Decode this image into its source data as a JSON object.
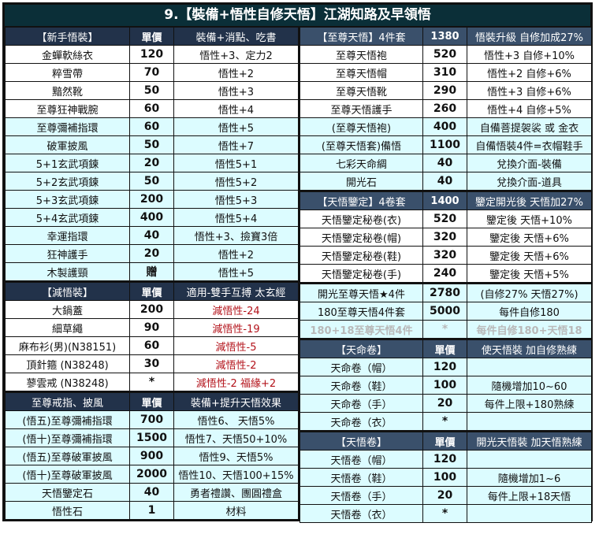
{
  "title": "9.【裝備+悟性自修天悟】江湖知路及早領悟",
  "colors": {
    "title_bg": "#0b2f38",
    "header_left": "#22324a",
    "header_right": "#3a506b",
    "row_cyan": "#dcfcff",
    "row_white": "#ffffff",
    "negative_text": "#b3121a"
  },
  "left_sections": [
    {
      "header": [
        "【新手悟裝】",
        "單價",
        "裝備+消點、吃書"
      ],
      "rows": [
        {
          "cells": [
            "金蟬軟絲衣",
            "120",
            "悟性+3、定力2"
          ],
          "style": "w"
        },
        {
          "cells": [
            "粹雪帶",
            "70",
            "悟性+2"
          ],
          "style": "w"
        },
        {
          "cells": [
            "黯然靴",
            "50",
            "悟性+3"
          ],
          "style": "w"
        },
        {
          "cells": [
            "至尊狂神戰腕",
            "60",
            "悟性+4"
          ],
          "style": "w"
        },
        {
          "cells": [
            "至尊彌補指環",
            "60",
            "悟性+5"
          ],
          "style": "c"
        },
        {
          "cells": [
            "破軍披風",
            "50",
            "悟性+7"
          ],
          "style": "c"
        },
        {
          "cells": [
            "5+1玄武項鍊",
            "20",
            "悟性5+1"
          ],
          "style": "c"
        },
        {
          "cells": [
            "5+2玄武項鍊",
            "50",
            "悟性5+2"
          ],
          "style": "c"
        },
        {
          "cells": [
            "5+3玄武項鍊",
            "200",
            "悟性5+3"
          ],
          "style": "c"
        },
        {
          "cells": [
            "5+4玄武項鍊",
            "400",
            "悟性5+4"
          ],
          "style": "c"
        },
        {
          "cells": [
            "幸運指環",
            "40",
            "悟性+3、撿寶3倍"
          ],
          "style": "c"
        },
        {
          "cells": [
            "狂神護手",
            "20",
            "悟性+2"
          ],
          "style": "c"
        },
        {
          "cells": [
            "木製護頸",
            "贈",
            "悟性+5"
          ],
          "style": "c"
        }
      ]
    },
    {
      "header": [
        "【減悟裝】",
        "單價",
        "適用-雙手互搏 太玄經"
      ],
      "rows": [
        {
          "cells": [
            "大鍋蓋",
            "200",
            "減悟性-24"
          ],
          "style": "w",
          "red": true
        },
        {
          "cells": [
            "細草繩",
            "90",
            "減悟性-19"
          ],
          "style": "w",
          "red": true
        },
        {
          "cells": [
            "麻布衫(男)(N38151)",
            "60",
            "減悟性-5"
          ],
          "style": "w",
          "red": true
        },
        {
          "cells": [
            "頂針箍 (N38248)",
            "30",
            "減悟性-2"
          ],
          "style": "w",
          "red": true
        },
        {
          "cells": [
            "蓼雲戒 (N38248)",
            "*",
            "減悟性-2 福緣+2"
          ],
          "style": "w",
          "red": true
        }
      ]
    },
    {
      "header": [
        "至尊戒指、披風",
        "單價",
        "裝備+提升天悟效果"
      ],
      "rows": [
        {
          "cells": [
            "(悟五)至尊彌補指環",
            "700",
            "悟性6、 天悟5%"
          ],
          "style": "c"
        },
        {
          "cells": [
            "(悟十)至尊彌補指環",
            "1500",
            "悟性7、天悟50+10%"
          ],
          "style": "c"
        },
        {
          "cells": [
            "(悟五)至尊破軍披風",
            "900",
            "悟性9、天悟5%"
          ],
          "style": "c"
        },
        {
          "cells": [
            "(悟十)至尊破軍披風",
            "2000",
            "悟性10、天悟100+15%"
          ],
          "style": "c"
        },
        {
          "cells": [
            "天悟鑒定石",
            "40",
            "勇者禮讚、團圓禮盒"
          ],
          "style": "c"
        },
        {
          "cells": [
            "悟性石",
            "1",
            "材料"
          ],
          "style": "c"
        }
      ]
    }
  ],
  "right_sections": [
    {
      "header": [
        "【至尊天悟】4件套",
        "1380",
        "悟裝升級 自修加成27%"
      ],
      "rows": [
        {
          "cells": [
            "至尊天悟袍",
            "520",
            "悟性+3 自修+10%"
          ],
          "style": "w"
        },
        {
          "cells": [
            "至尊天悟帽",
            "310",
            "悟性+2 自修+6%"
          ],
          "style": "w"
        },
        {
          "cells": [
            "至尊天悟靴",
            "290",
            "悟性+3 自修+6%"
          ],
          "style": "w"
        },
        {
          "cells": [
            "至尊天悟護手",
            "260",
            "悟性+4 自修+5%"
          ],
          "style": "w"
        },
        {
          "cells": [
            "(至尊天悟袍)",
            "400",
            "自備菩提袈裟 或 金衣"
          ],
          "style": "c"
        },
        {
          "cells": [
            "(至尊天悟套)備悟",
            "1100",
            "自備悟裝4件=衣帽鞋手"
          ],
          "style": "c"
        },
        {
          "cells": [
            "七彩天命綢",
            "40",
            "兌換介面-裝備"
          ],
          "style": "c"
        },
        {
          "cells": [
            "開光石",
            "40",
            "兌換介面-道具"
          ],
          "style": "c"
        }
      ]
    },
    {
      "header": [
        "【天悟鑒定】4卷套",
        "1400",
        "鑒定開光後 天悟加27%"
      ],
      "rows": [
        {
          "cells": [
            "天悟鑒定秘卷(衣)",
            "520",
            "鑒定後 天悟+10%"
          ],
          "style": "w"
        },
        {
          "cells": [
            "天悟鑒定秘卷(帽)",
            "320",
            "鑒定後 天悟+6%"
          ],
          "style": "w"
        },
        {
          "cells": [
            "天悟鑒定秘卷(鞋)",
            "320",
            "鑒定後 天悟+6%"
          ],
          "style": "w"
        },
        {
          "cells": [
            "天悟鑒定秘卷(手)",
            "240",
            "鑒定後 天悟+5%"
          ],
          "style": "w"
        },
        {
          "cells": [
            "開光至尊天悟★4件",
            "2780",
            "(自修27% 天悟27%)"
          ],
          "style": "c",
          "gap": true
        },
        {
          "cells": [
            "180至尊天悟4件套",
            "5000",
            "每件自修180"
          ],
          "style": "c"
        },
        {
          "cells": [
            "180+18至尊天悟4件",
            "*",
            "每件自修180+天悟18"
          ],
          "style": "c",
          "grey": true
        }
      ]
    },
    {
      "header": [
        "【天命卷】",
        "單價",
        "使天悟裝 加自修熟練"
      ],
      "rows": [
        {
          "cells": [
            "天命卷（帽）",
            "120",
            ""
          ],
          "style": "c"
        },
        {
          "cells": [
            "天命卷（鞋）",
            "100",
            "隨機增加10~60"
          ],
          "style": "c"
        },
        {
          "cells": [
            "天命卷（手）",
            "20",
            "每件上限+180熟練"
          ],
          "style": "c"
        },
        {
          "cells": [
            "天命卷（衣）",
            "*",
            ""
          ],
          "style": "c"
        }
      ]
    },
    {
      "header": [
        "【天悟卷】",
        "單價",
        "開光天悟裝 加天悟熟練"
      ],
      "rows": [
        {
          "cells": [
            "天悟卷（帽）",
            "120",
            ""
          ],
          "style": "c"
        },
        {
          "cells": [
            "天悟卷（鞋）",
            "100",
            "隨機增加1~6"
          ],
          "style": "c"
        },
        {
          "cells": [
            "天悟卷（手）",
            "20",
            "每件上限+18天悟"
          ],
          "style": "c"
        },
        {
          "cells": [
            "天悟卷（衣）",
            "*",
            ""
          ],
          "style": "c"
        }
      ]
    }
  ]
}
